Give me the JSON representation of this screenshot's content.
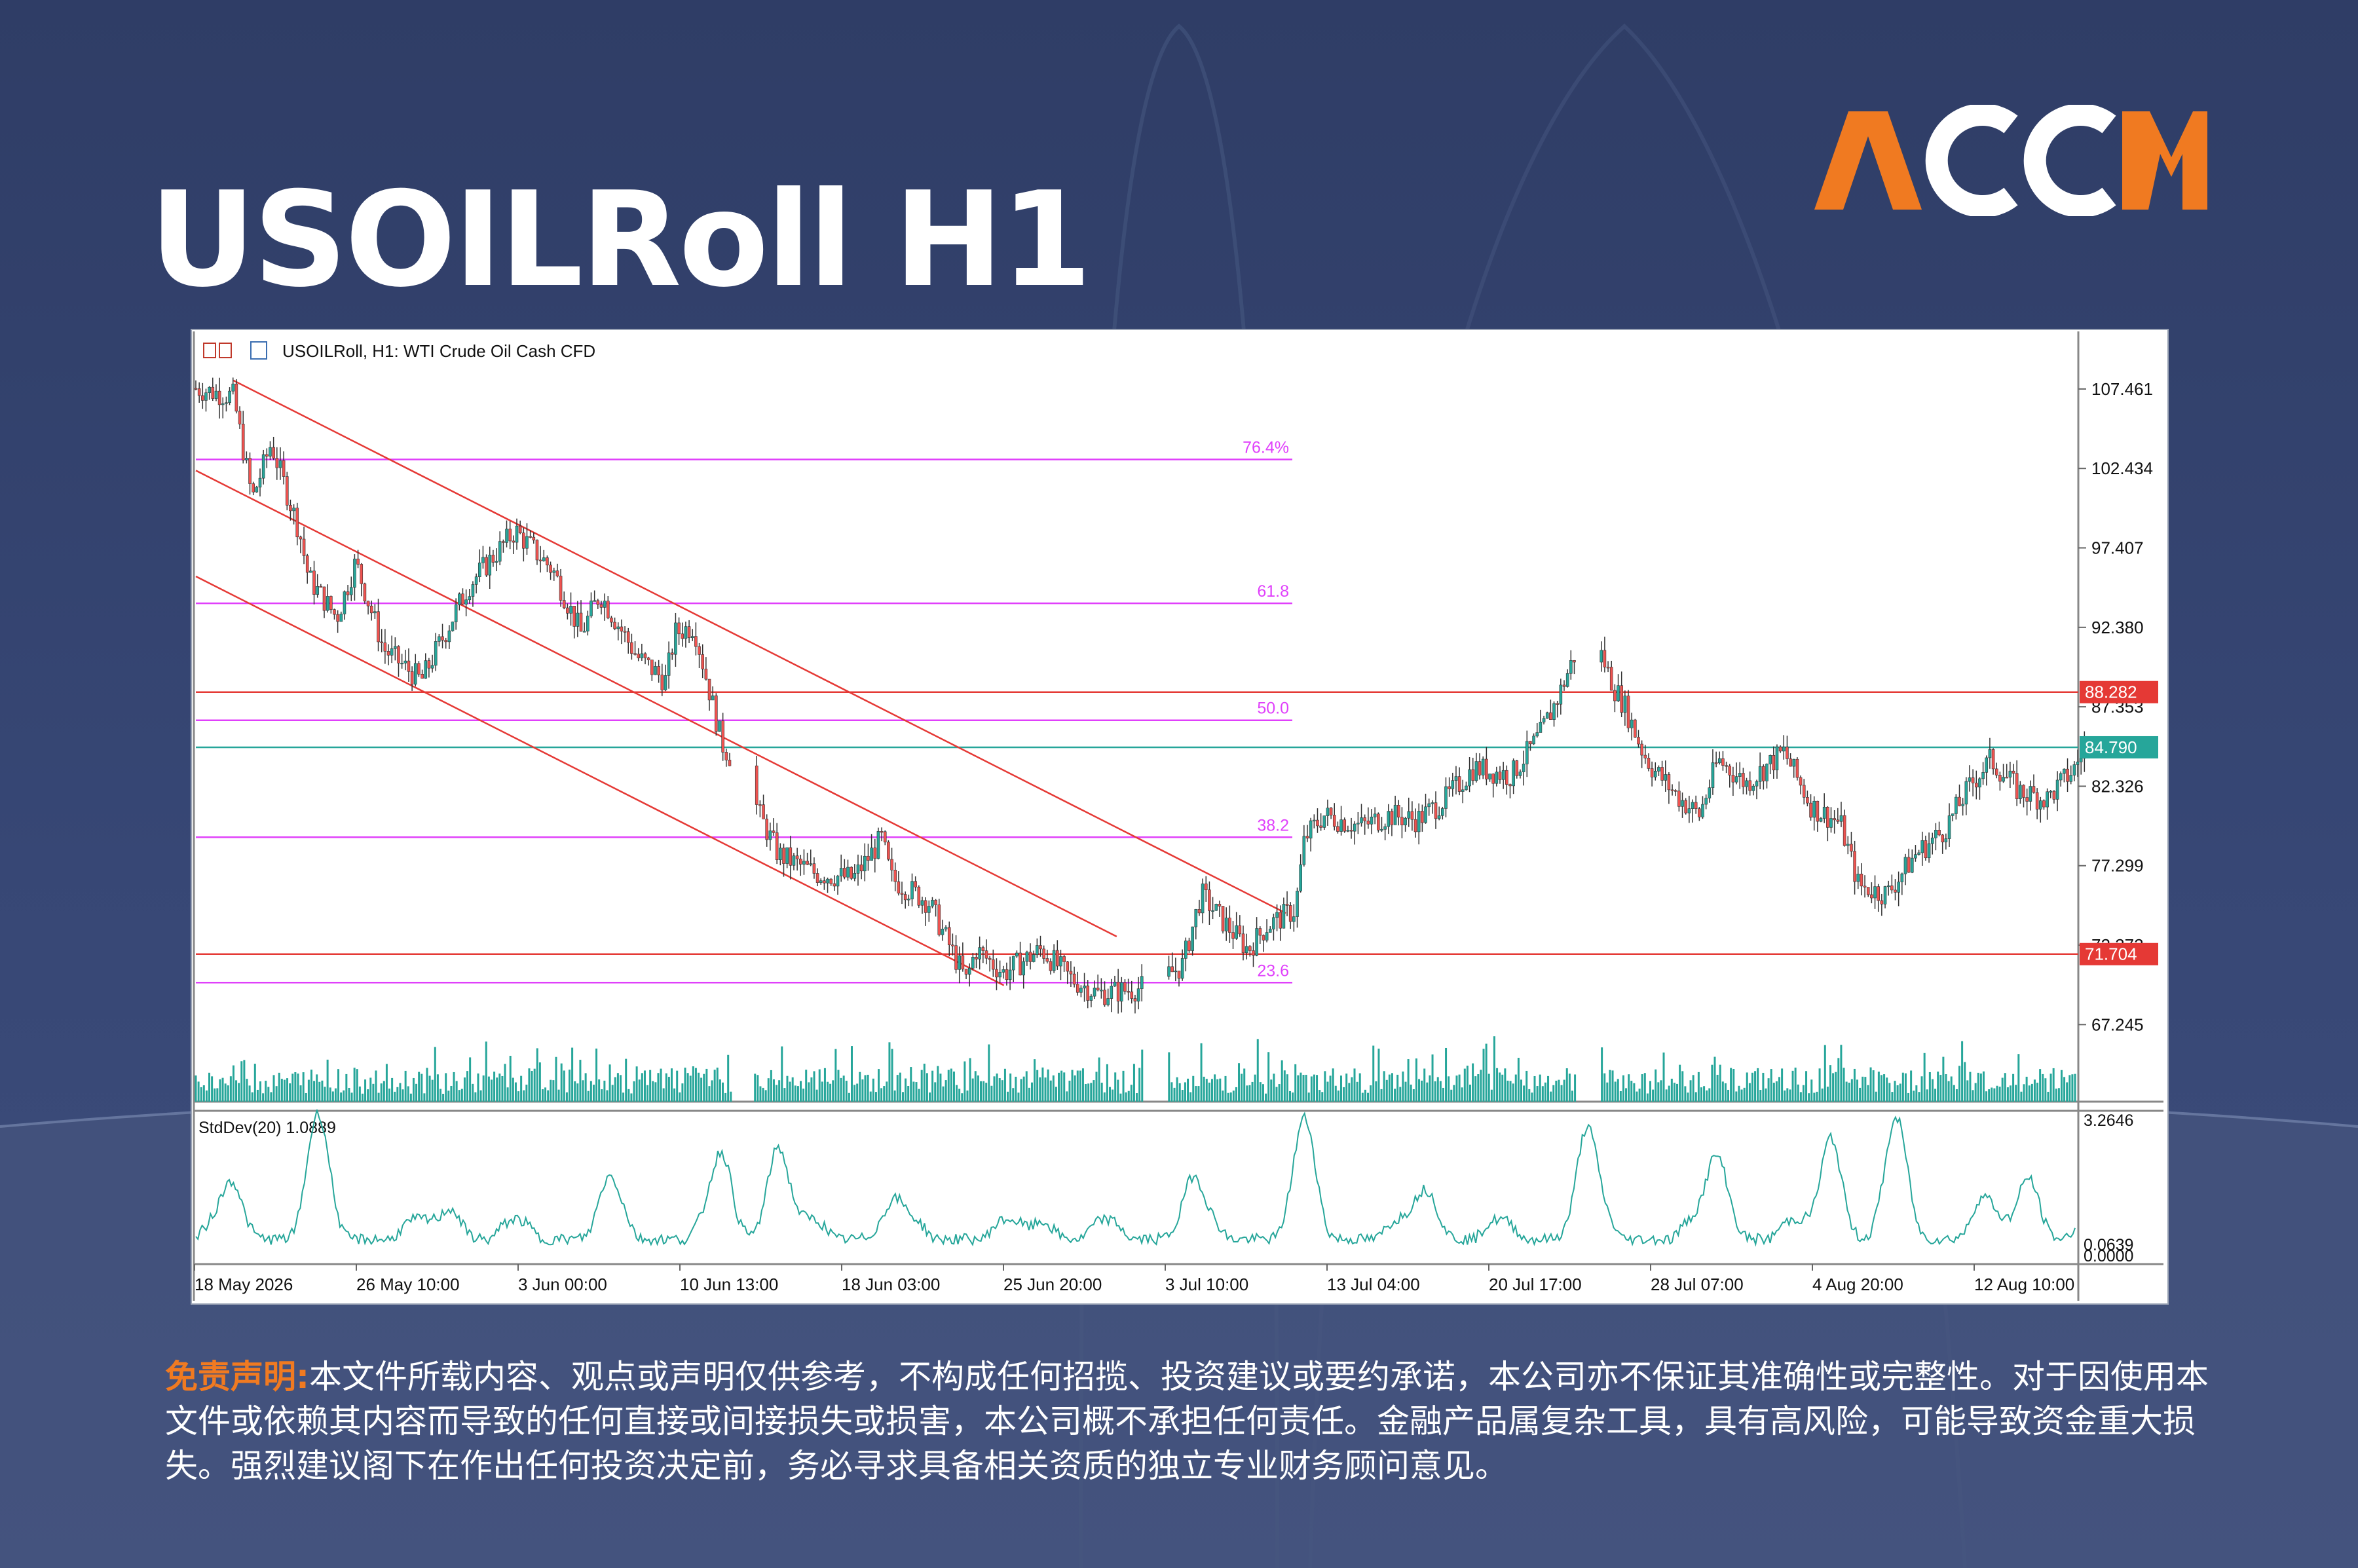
{
  "page": {
    "title": "USOILRoll H1",
    "logo_text": "ACCM",
    "disclaimer_label": "免责声明:",
    "disclaimer_text": "本文件所载内容、观点或声明仅供参考，不构成任何招揽、投资建议或要约承诺，本公司亦不保证其准确性或完整性。对于因使用本文件或依赖其内容而导致的任何直接或间接损失或损害，本公司概不承担任何责任。金融产品属复杂工具，具有高风险，可能导致资金重大损失。强烈建议阁下在作出任何投资决定前，务必寻求具备相关资质的独立专业财务顾问意见。"
  },
  "colors": {
    "background": "#34426e",
    "accent_orange": "#f07a21",
    "bull_candle": "#26a69a",
    "bear_candle": "#ef5350",
    "fib_line": "#e040fb",
    "level_line": "#e53935",
    "current_price": "#26a69a"
  },
  "chart_data": {
    "type": "candlestick",
    "header": "USOILRoll, H1:  WTI Crude Oil Cash CFD",
    "y_axis_ticks": [
      "107.461",
      "102.434",
      "97.407",
      "92.380",
      "87.353",
      "82.326",
      "77.299",
      "72.272",
      "67.245"
    ],
    "ylim": [
      62.7,
      108.7
    ],
    "x_axis_ticks": [
      "18 May 2026",
      "26 May 10:00",
      "3 Jun 00:00",
      "10 Jun 13:00",
      "18 Jun 03:00",
      "25 Jun 20:00",
      "3 Jul 10:00",
      "13 Jul 04:00",
      "20 Jul 17:00",
      "28 Jul 07:00",
      "4 Aug 20:00",
      "12 Aug 10:00"
    ],
    "price_path": [
      [
        0,
        107.5
      ],
      [
        0.02,
        107.0
      ],
      [
        0.03,
        100.5
      ],
      [
        0.04,
        104.0
      ],
      [
        0.055,
        98.5
      ],
      [
        0.06,
        95.5
      ],
      [
        0.075,
        93.0
      ],
      [
        0.085,
        96.5
      ],
      [
        0.1,
        91.0
      ],
      [
        0.12,
        89.0
      ],
      [
        0.145,
        95.0
      ],
      [
        0.17,
        98.5
      ],
      [
        0.19,
        96.0
      ],
      [
        0.205,
        92.0
      ],
      [
        0.215,
        94.5
      ],
      [
        0.235,
        90.5
      ],
      [
        0.25,
        89.0
      ],
      [
        0.255,
        92.0
      ],
      [
        0.265,
        92.5
      ],
      [
        0.28,
        85.0
      ],
      [
        0.295,
        82.3
      ],
      [
        0.3,
        80.5
      ],
      [
        0.31,
        78.0
      ],
      [
        0.33,
        76.8
      ],
      [
        0.35,
        76.5
      ],
      [
        0.365,
        79.0
      ],
      [
        0.37,
        76.5
      ],
      [
        0.39,
        75.0
      ],
      [
        0.4,
        72.5
      ],
      [
        0.41,
        70.0
      ],
      [
        0.415,
        72.0
      ],
      [
        0.43,
        70.5
      ],
      [
        0.45,
        72.0
      ],
      [
        0.465,
        70.2
      ],
      [
        0.48,
        69.2
      ],
      [
        0.5,
        69.5
      ],
      [
        0.51,
        69.8
      ],
      [
        0.525,
        71.0
      ],
      [
        0.535,
        75.5
      ],
      [
        0.545,
        74.0
      ],
      [
        0.56,
        72.0
      ],
      [
        0.57,
        73.5
      ],
      [
        0.585,
        74.5
      ],
      [
        0.59,
        79.0
      ],
      [
        0.6,
        80.5
      ],
      [
        0.62,
        79.8
      ],
      [
        0.635,
        80.5
      ],
      [
        0.65,
        80.2
      ],
      [
        0.665,
        81.5
      ],
      [
        0.68,
        83.5
      ],
      [
        0.7,
        83.0
      ],
      [
        0.715,
        85.5
      ],
      [
        0.725,
        88.0
      ],
      [
        0.74,
        92.5
      ],
      [
        0.745,
        91.5
      ],
      [
        0.755,
        88.5
      ],
      [
        0.76,
        87.5
      ],
      [
        0.77,
        84.5
      ],
      [
        0.775,
        83.5
      ],
      [
        0.79,
        81.5
      ],
      [
        0.8,
        80.5
      ],
      [
        0.81,
        84.0
      ],
      [
        0.825,
        82.5
      ],
      [
        0.835,
        83.5
      ],
      [
        0.845,
        84.5
      ],
      [
        0.86,
        81.0
      ],
      [
        0.875,
        80.0
      ],
      [
        0.885,
        76.0
      ],
      [
        0.9,
        75.5
      ],
      [
        0.915,
        78.0
      ],
      [
        0.93,
        79.5
      ],
      [
        0.945,
        82.5
      ],
      [
        0.955,
        84.0
      ],
      [
        0.97,
        82.0
      ],
      [
        0.985,
        81.5
      ],
      [
        1.0,
        83.5
      ],
      [
        1.005,
        84.8
      ]
    ],
    "gaps": [
      0.285,
      0.505,
      0.735
    ],
    "horizontal_levels": [
      {
        "label": "88.282",
        "value": 88.282,
        "kind": "resistance"
      },
      {
        "label": "84.790",
        "value": 84.79,
        "kind": "current_price"
      },
      {
        "label": "71.704",
        "value": 71.704,
        "kind": "support"
      }
    ],
    "fibonacci_levels": [
      {
        "label": "76.4%",
        "value": 103.0
      },
      {
        "label": "61.8",
        "value": 93.9
      },
      {
        "label": "50.0",
        "value": 86.5
      },
      {
        "label": "38.2",
        "value": 79.1
      },
      {
        "label": "23.6",
        "value": 69.9
      }
    ],
    "channel": {
      "upper_start": [
        0.02,
        108.0
      ],
      "upper_end": [
        0.58,
        74.3
      ],
      "lower_offsets": [
        -6.9,
        -13.6
      ]
    },
    "volume_histogram": true,
    "indicator": {
      "name": "StdDev(20) 1.0889",
      "y_axis_ticks": [
        "3.2646",
        "0.0639",
        "0.0000"
      ],
      "ylim": [
        0.0,
        3.2646
      ],
      "peaks": [
        [
          0.02,
          1.5
        ],
        [
          0.065,
          2.9
        ],
        [
          0.135,
          1.2
        ],
        [
          0.22,
          1.5
        ],
        [
          0.28,
          2.1
        ],
        [
          0.31,
          2.6
        ],
        [
          0.37,
          1.2
        ],
        [
          0.45,
          0.9
        ],
        [
          0.53,
          1.6
        ],
        [
          0.59,
          2.8
        ],
        [
          0.655,
          1.6
        ],
        [
          0.74,
          2.7
        ],
        [
          0.81,
          2.3
        ],
        [
          0.87,
          2.8
        ],
        [
          0.905,
          2.8
        ],
        [
          0.95,
          1.1
        ],
        [
          0.975,
          1.9
        ]
      ]
    },
    "grid": false
  }
}
